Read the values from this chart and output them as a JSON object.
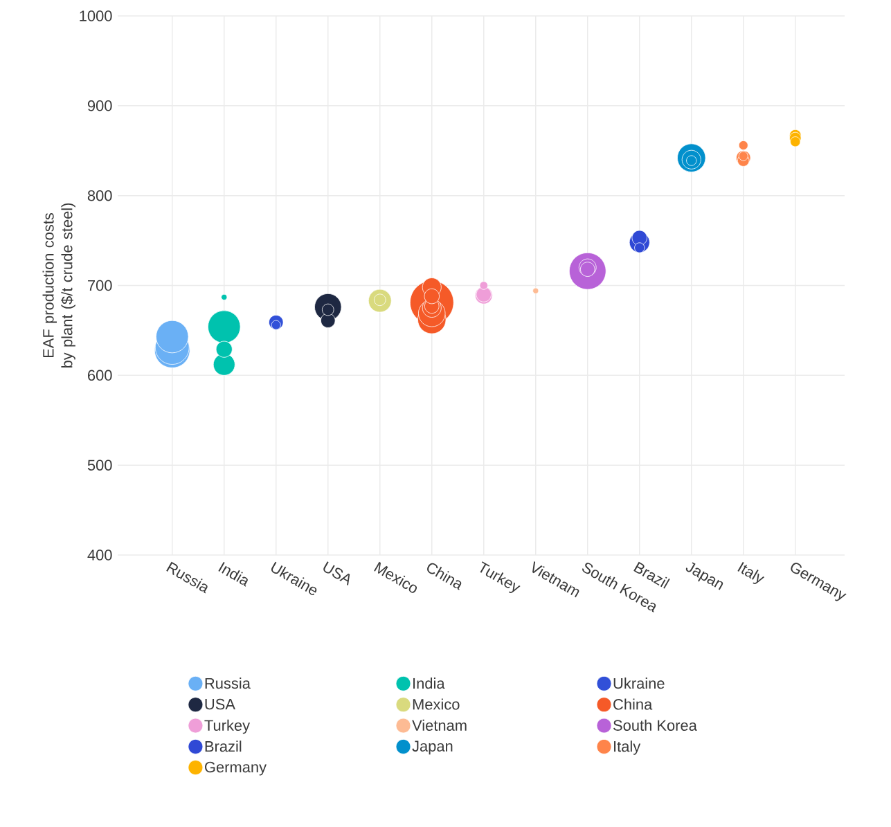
{
  "chart_data": {
    "type": "bubble",
    "ylabel": "EAF production costs by plant ($/t crude steel)",
    "categories": [
      "Russia",
      "India",
      "Ukraine",
      "USA",
      "Mexico",
      "China",
      "Turkey",
      "Vietnam",
      "South Korea",
      "Brazil",
      "Japan",
      "Italy",
      "Germany"
    ],
    "ylim": [
      400,
      1000
    ],
    "yticks": [
      400,
      500,
      600,
      700,
      800,
      900,
      1000
    ],
    "grid": true,
    "legend": "bottom",
    "series": [
      {
        "name": "Russia",
        "color": "#6ab0f5",
        "x": [
          "Russia",
          "Russia",
          "Russia"
        ],
        "values": [
          628,
          631,
          643
        ],
        "sizes": [
          0.67,
          0.62,
          0.57
        ]
      },
      {
        "name": "India",
        "color": "#00c2ae",
        "x": [
          "India",
          "India",
          "India",
          "India"
        ],
        "values": [
          654,
          612,
          629,
          687
        ],
        "sizes": [
          0.57,
          0.27,
          0.16,
          0.03
        ]
      },
      {
        "name": "Ukraine",
        "color": "#3150d8",
        "x": [
          "Ukraine",
          "Ukraine"
        ],
        "values": [
          659,
          656
        ],
        "sizes": [
          0.13,
          0.06
        ]
      },
      {
        "name": "USA",
        "color": "#1e2842",
        "x": [
          "USA",
          "USA",
          "USA"
        ],
        "values": [
          676,
          661,
          673
        ],
        "sizes": [
          0.4,
          0.13,
          0.09
        ]
      },
      {
        "name": "Mexico",
        "color": "#d9da7e",
        "x": [
          "Mexico",
          "Mexico"
        ],
        "values": [
          683,
          684
        ],
        "sizes": [
          0.3,
          0.09
        ]
      },
      {
        "name": "China",
        "color": "#f55a28",
        "x": [
          "China",
          "China",
          "China",
          "China",
          "China",
          "China",
          "China"
        ],
        "values": [
          681,
          662,
          669,
          698,
          675,
          677,
          688
        ],
        "sizes": [
          1,
          0.44,
          0.4,
          0.21,
          0.21,
          0.13,
          0.14
        ]
      },
      {
        "name": "Turkey",
        "color": "#ef9ed8",
        "x": [
          "Turkey",
          "Turkey",
          "Turkey"
        ],
        "values": [
          689,
          690,
          700
        ],
        "sizes": [
          0.18,
          0.14,
          0.05
        ]
      },
      {
        "name": "Vietnam",
        "color": "#fdbb94",
        "x": [
          "Vietnam"
        ],
        "values": [
          694
        ],
        "sizes": [
          0.03
        ]
      },
      {
        "name": "South Korea",
        "color": "#b862d8",
        "x": [
          "South Korea",
          "South Korea",
          "South Korea"
        ],
        "values": [
          716,
          720,
          718
        ],
        "sizes": [
          0.72,
          0.18,
          0.13
        ]
      },
      {
        "name": "Brazil",
        "color": "#3049d5",
        "x": [
          "Brazil",
          "Brazil",
          "Brazil"
        ],
        "values": [
          748,
          753,
          742
        ],
        "sizes": [
          0.24,
          0.14,
          0.07
        ]
      },
      {
        "name": "Japan",
        "color": "#0290cc",
        "x": [
          "Japan",
          "Japan",
          "Japan"
        ],
        "values": [
          842,
          840,
          839
        ],
        "sizes": [
          0.44,
          0.21,
          0.07
        ]
      },
      {
        "name": "Italy",
        "color": "#fe844a",
        "x": [
          "Italy",
          "Italy",
          "Italy",
          "Italy"
        ],
        "values": [
          842,
          839,
          844,
          856
        ],
        "sizes": [
          0.13,
          0.09,
          0.06,
          0.06
        ]
      },
      {
        "name": "Germany",
        "color": "#fdb300",
        "x": [
          "Germany",
          "Germany",
          "Germany"
        ],
        "values": [
          867,
          864,
          860
        ],
        "sizes": [
          0.09,
          0.09,
          0.07
        ]
      }
    ]
  }
}
